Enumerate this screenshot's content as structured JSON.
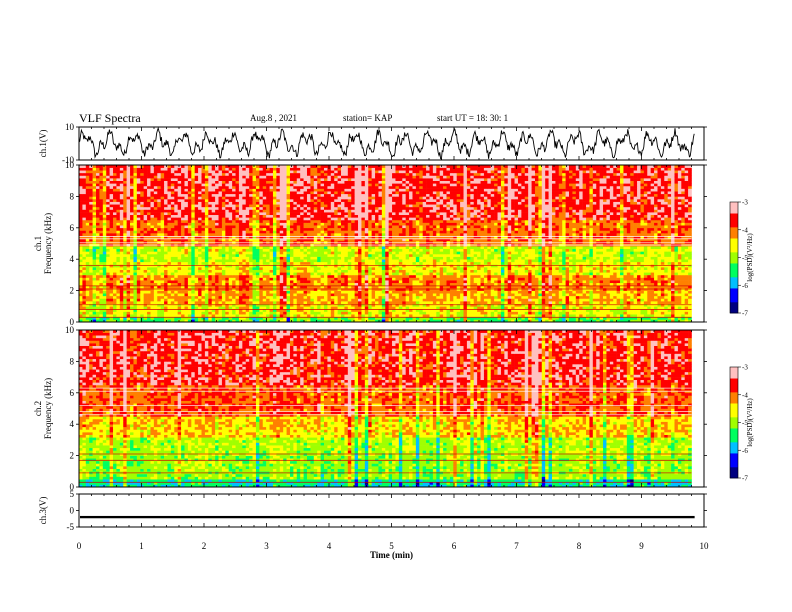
{
  "header": {
    "title": "VLF Spectra",
    "date": "Aug.8 , 2021",
    "station": "station= KAP",
    "start": "start UT = 18: 30: 1"
  },
  "chart_data": [
    {
      "type": "line",
      "name": "ch1-waveform",
      "ylabel": "ch.1(V)",
      "ylim": [
        -10,
        10
      ],
      "yticks": [
        "10",
        "-10"
      ],
      "xlim": [
        0,
        10
      ],
      "description_range": [
        -9,
        9
      ]
    },
    {
      "type": "heatmap",
      "name": "ch1-spectrogram",
      "ylabel": "ch.1\nFrequency (kHz)",
      "ylim": [
        0,
        10
      ],
      "yticks": [
        "0",
        "2",
        "4",
        "6",
        "8",
        "10"
      ],
      "xlim": [
        0,
        10
      ],
      "data_end_min": 9.8,
      "colorbar": {
        "label": "log(PSD)(V²/Hz)",
        "range": [
          -7,
          -3
        ],
        "ticks": [
          "-3",
          "-4",
          "-5",
          "-6",
          "-7"
        ]
      },
      "bands_khz": [
        {
          "from": 0.0,
          "to": 0.4,
          "level": -5.2
        },
        {
          "from": 0.4,
          "to": 1.2,
          "level": -4.6
        },
        {
          "from": 1.2,
          "to": 2.0,
          "level": -4.3
        },
        {
          "from": 2.0,
          "to": 3.0,
          "level": -4.1
        },
        {
          "from": 3.0,
          "to": 3.8,
          "level": -4.6
        },
        {
          "from": 3.8,
          "to": 4.8,
          "level": -4.8
        },
        {
          "from": 4.8,
          "to": 6.5,
          "level": -4.0
        },
        {
          "from": 6.5,
          "to": 10.0,
          "level": -3.6
        }
      ]
    },
    {
      "type": "heatmap",
      "name": "ch2-spectrogram",
      "ylabel": "ch.2\nFrequency (kHz)",
      "ylim": [
        0,
        10
      ],
      "yticks": [
        "0",
        "2",
        "4",
        "6",
        "8",
        "10"
      ],
      "xlim": [
        0,
        10
      ],
      "data_end_min": 9.8,
      "colorbar": {
        "label": "log(PSD)(V²/Hz)",
        "range": [
          -7,
          -3
        ],
        "ticks": [
          "-3",
          "-4",
          "-5",
          "-6",
          "-7"
        ]
      },
      "bands_khz": [
        {
          "from": 0.0,
          "to": 0.5,
          "level": -5.6
        },
        {
          "from": 0.5,
          "to": 2.0,
          "level": -5.0
        },
        {
          "from": 2.0,
          "to": 3.2,
          "level": -4.9
        },
        {
          "from": 3.2,
          "to": 4.5,
          "level": -4.4
        },
        {
          "from": 4.5,
          "to": 6.5,
          "level": -3.9
        },
        {
          "from": 6.5,
          "to": 10.0,
          "level": -3.6
        }
      ]
    },
    {
      "type": "line",
      "name": "ch3-waveform",
      "ylabel": "ch.3(V)",
      "ylim": [
        -5,
        5
      ],
      "yticks": [
        "5",
        "0",
        "-5"
      ],
      "xlim": [
        0,
        10
      ],
      "level": -2,
      "amplitude": 0.35
    }
  ],
  "xaxis": {
    "label": "Time (min)",
    "ticks": [
      "0",
      "1",
      "2",
      "3",
      "4",
      "5",
      "6",
      "7",
      "8",
      "9",
      "10"
    ]
  },
  "colors": {
    "scale": [
      "#000080",
      "#0000ff",
      "#00c0ff",
      "#00ff60",
      "#a0ff00",
      "#ffff00",
      "#ff8000",
      "#ff0000",
      "#ffc0c0",
      "#ffffff"
    ]
  }
}
